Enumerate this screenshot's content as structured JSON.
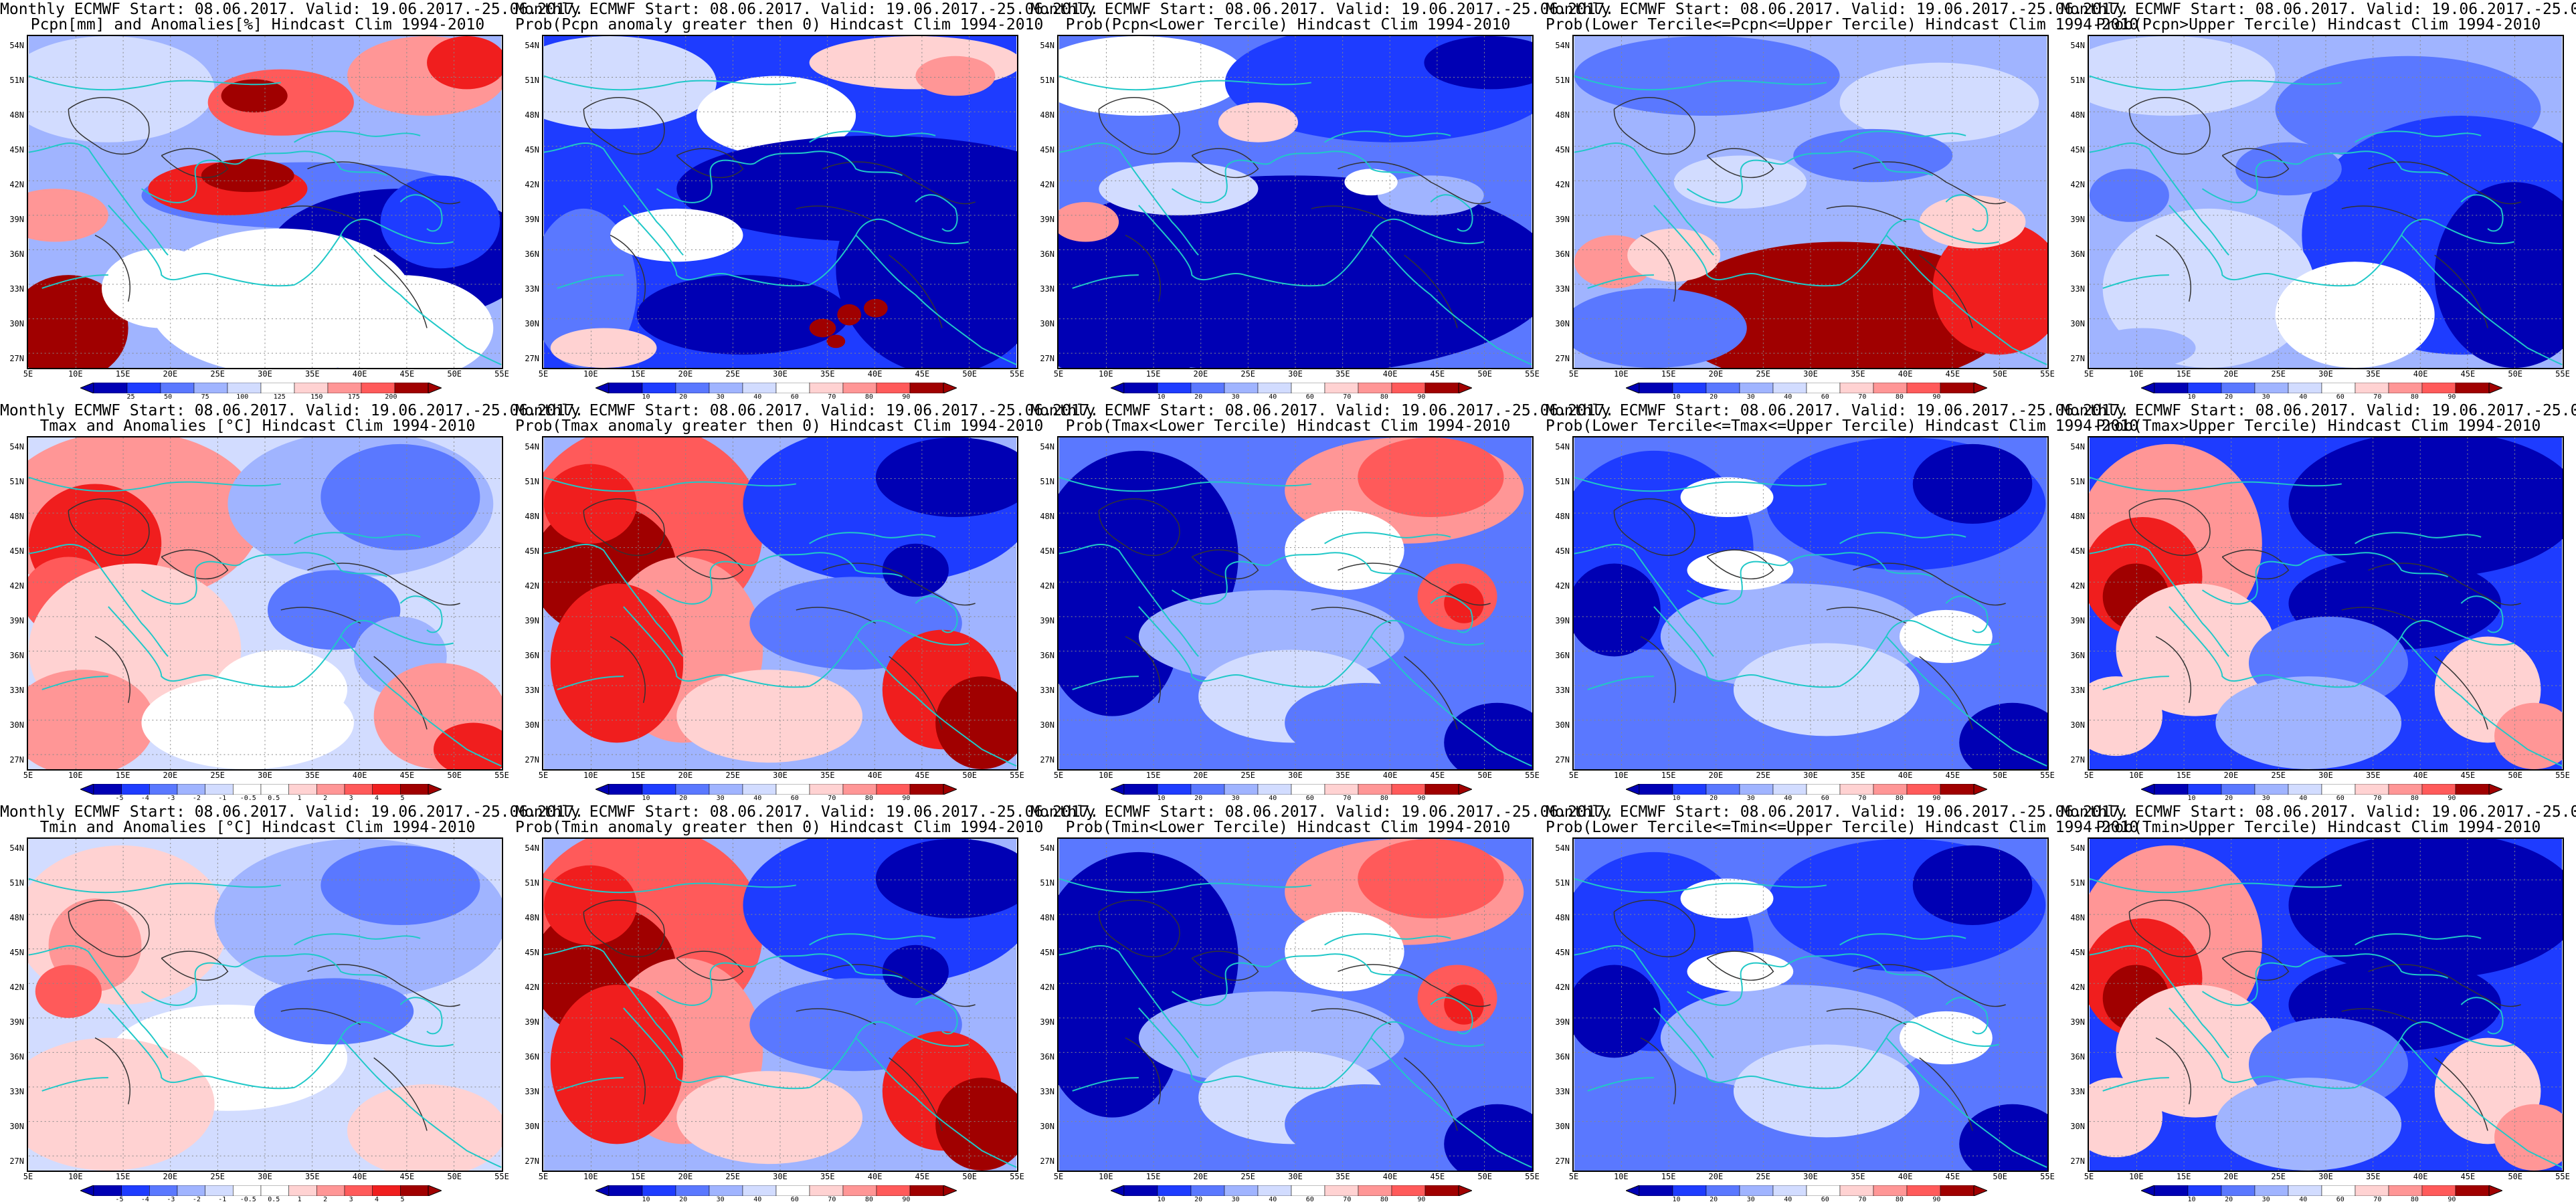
{
  "header_line": "Monthly ECMWF Start: 08.06.2017. Valid: 19.06.2017.-25.06.2017.",
  "lat_labels": [
    "54N",
    "51N",
    "48N",
    "45N",
    "42N",
    "39N",
    "36N",
    "33N",
    "30N",
    "27N"
  ],
  "lon_labels": [
    "5E",
    "10E",
    "15E",
    "20E",
    "25E",
    "30E",
    "35E",
    "40E",
    "45E",
    "50E",
    "55E"
  ],
  "colors": {
    "blue_dark": "#0000b4",
    "blue": "#1e3cff",
    "blue_mid": "#5a78ff",
    "blue_light": "#a0b4ff",
    "blue_pale": "#d2dcff",
    "white": "#ffffff",
    "red_pale": "#ffd2d2",
    "red_light": "#ff9696",
    "red_mid": "#ff5a5a",
    "red": "#f01e1e",
    "red_dark": "#a00000",
    "coast": "#20c8c8",
    "contour": "#333333"
  },
  "scales": {
    "anom_pcpn": [
      "25",
      "50",
      "75",
      "100",
      "125",
      "150",
      "175",
      "200"
    ],
    "anom_temp": [
      "-5",
      "-4",
      "-3",
      "-2",
      "-1",
      "-0.5",
      "0.5",
      "1",
      "2",
      "3",
      "4",
      "5"
    ],
    "prob": [
      "10",
      "20",
      "30",
      "40",
      "60",
      "70",
      "80",
      "90"
    ]
  },
  "rows": [
    {
      "panels": [
        {
          "title": "Pcpn[mm] and Anomalies[%] Hindcast Clim 1994-2010",
          "scale": "anom_pcpn",
          "pattern": "pcpn_anom"
        },
        {
          "title": "Prob(Pcpn anomaly greater then 0) Hindcast Clim 1994-2010",
          "scale": "prob",
          "pattern": "pcpn_pgt0"
        },
        {
          "title": "Prob(Pcpn<Lower Tercile) Hindcast Clim 1994-2010",
          "scale": "prob",
          "pattern": "pcpn_low"
        },
        {
          "title": "Prob(Lower Tercile<=Pcpn<=Upper Tercile) Hindcast Clim 1994-2010",
          "scale": "prob",
          "pattern": "pcpn_mid"
        },
        {
          "title": "Prob(Pcpn>Upper Tercile) Hindcast Clim 1994-2010",
          "scale": "prob",
          "pattern": "pcpn_up"
        }
      ]
    },
    {
      "panels": [
        {
          "title": "Tmax and Anomalies [°C] Hindcast Clim 1994-2010",
          "scale": "anom_temp",
          "pattern": "t_anom"
        },
        {
          "title": "Prob(Tmax anomaly greater then 0) Hindcast Clim 1994-2010",
          "scale": "prob",
          "pattern": "t_pgt0"
        },
        {
          "title": "Prob(Tmax<Lower Tercile) Hindcast Clim 1994-2010",
          "scale": "prob",
          "pattern": "t_low"
        },
        {
          "title": "Prob(Lower Tercile<=Tmax<=Upper Tercile) Hindcast Clim 1994-2010",
          "scale": "prob",
          "pattern": "t_mid"
        },
        {
          "title": "Prob(Tmax>Upper Tercile) Hindcast Clim 1994-2010",
          "scale": "prob",
          "pattern": "t_up"
        }
      ]
    },
    {
      "panels": [
        {
          "title": "Tmin and Anomalies [°C] Hindcast Clim 1994-2010",
          "scale": "anom_temp",
          "pattern": "tn_anom"
        },
        {
          "title": "Prob(Tmin anomaly greater then 0) Hindcast Clim 1994-2010",
          "scale": "prob",
          "pattern": "t_pgt0"
        },
        {
          "title": "Prob(Tmin<Lower Tercile) Hindcast Clim 1994-2010",
          "scale": "prob",
          "pattern": "t_low"
        },
        {
          "title": "Prob(Lower Tercile<=Tmin<=Upper Tercile) Hindcast Clim 1994-2010",
          "scale": "prob",
          "pattern": "t_mid"
        },
        {
          "title": "Prob(Tmin>Upper Tercile) Hindcast Clim 1994-2010",
          "scale": "prob",
          "pattern": "t_up"
        }
      ]
    }
  ]
}
